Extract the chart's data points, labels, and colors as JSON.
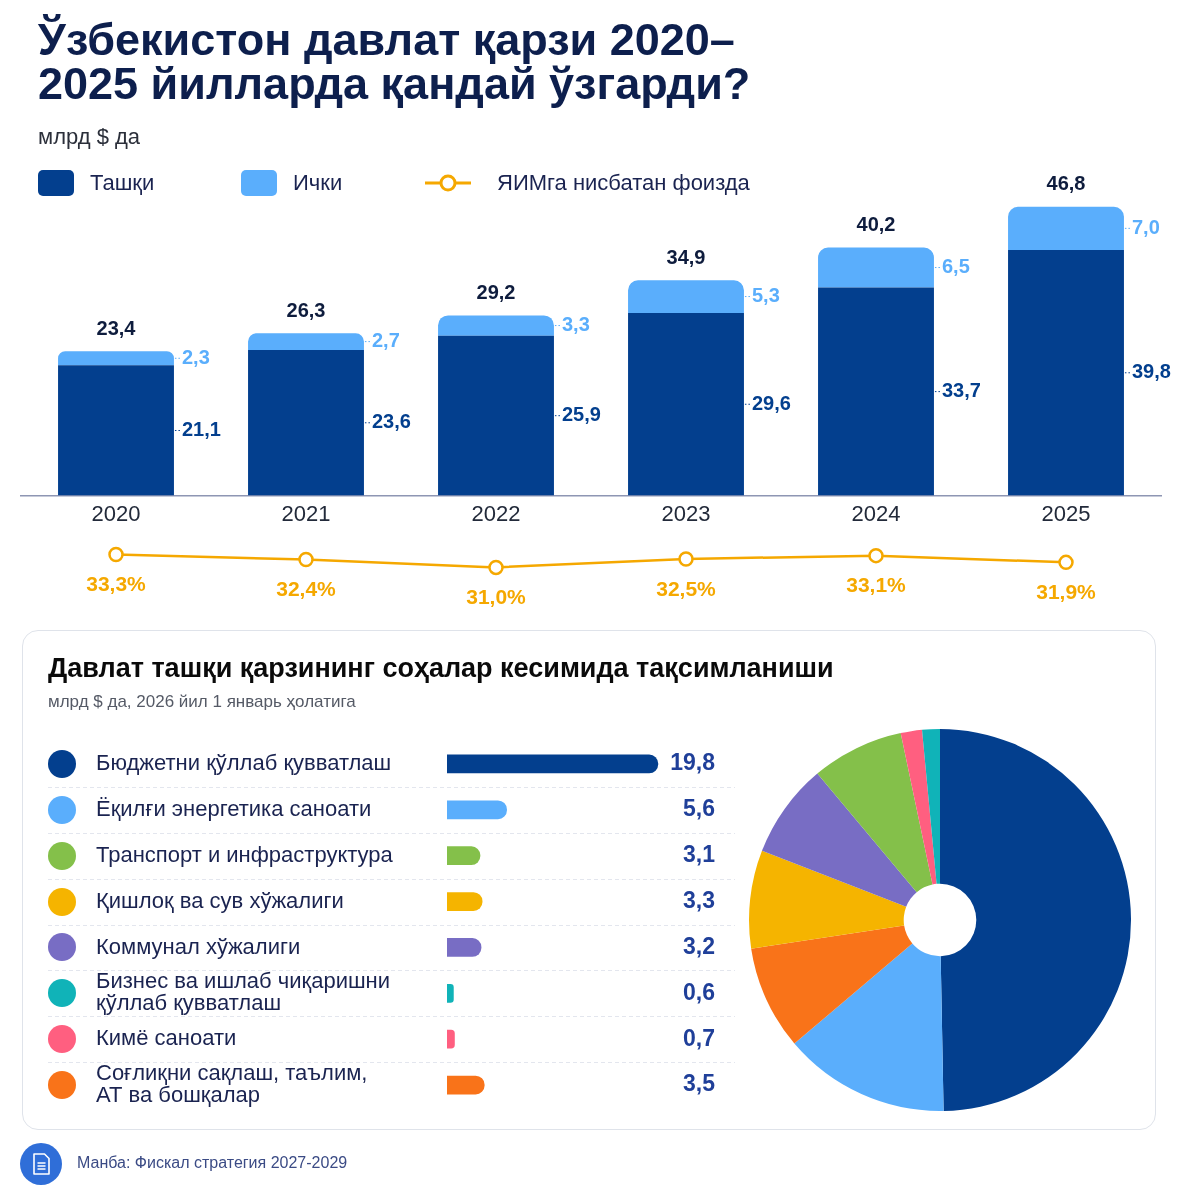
{
  "chart_data": [
    {
      "type": "bar",
      "title": "Ўзбекистон давлат қарзи 2020–2025 йилларда қандай ўзгарди?",
      "subtitle": "млрд $ да",
      "categories": [
        "2020",
        "2021",
        "2022",
        "2023",
        "2024",
        "2025"
      ],
      "stacked": true,
      "series": [
        {
          "name": "Ташқи",
          "color": "#033f8e",
          "values": [
            21.1,
            23.6,
            25.9,
            29.6,
            33.7,
            39.8
          ],
          "value_labels": [
            "21,1",
            "23,6",
            "25,9",
            "29,6",
            "33,7",
            "39,8"
          ]
        },
        {
          "name": "Ички",
          "color": "#5aaefc",
          "values": [
            2.3,
            2.7,
            3.3,
            5.3,
            6.5,
            7.0
          ],
          "value_labels": [
            "2,3",
            "2,7",
            "3,3",
            "5,3",
            "6,5",
            "7,0"
          ]
        }
      ],
      "totals": [
        "23,4",
        "26,3",
        "29,2",
        "34,9",
        "40,2",
        "46,8"
      ],
      "legend": "top left",
      "tick_labels": "x"
    },
    {
      "type": "line",
      "categories": [
        "2020",
        "2021",
        "2022",
        "2023",
        "2024",
        "2025"
      ],
      "series": [
        {
          "name": "ЯИМга нисбатан фоизда",
          "color": "#f5a800",
          "values": [
            33.3,
            32.4,
            31.0,
            32.5,
            33.1,
            31.9
          ],
          "value_labels": [
            "33,3%",
            "32,4%",
            "31,0%",
            "32,5%",
            "33,1%",
            "31,9%"
          ]
        }
      ],
      "marker": "circle",
      "legend": "top left",
      "tick_labels": false
    },
    {
      "type": "bar",
      "orientation": "horizontal",
      "title": "Давлат ташқи қарзининг соҳалар кесимида тақсимланиши",
      "subtitle": "млрд $ да, 2026 йил 1 январь ҳолатига",
      "categories": [
        "Бюджетни қўллаб қувватлаш",
        "Ёқилғи энергетика саноати",
        "Транспорт и инфраструктура",
        "Қишлоқ ва сув хўжалиги",
        "Коммунал хўжалиги",
        "Бизнес ва ишлаб чиқаришни қўллаб қувватлаш",
        "Кимё саноати",
        "Соғлиқни сақлаш, таълим, АТ ва бошқалар"
      ],
      "values": [
        19.8,
        5.6,
        3.1,
        3.3,
        3.2,
        0.6,
        0.7,
        3.5
      ],
      "colors": [
        "#033f8e",
        "#5aaefc",
        "#84c04a",
        "#f5b400",
        "#786dc4",
        "#10b3b8",
        "#ff5f80",
        "#f97319"
      ],
      "value_labels": [
        "19,8",
        "5,6",
        "3,1",
        "3,3",
        "3,2",
        "0,6",
        "0,7",
        "3,5"
      ],
      "tick_labels": "y",
      "grid": "y",
      "annotations": [
        "Манба: Фискал стратегия 2027-2029"
      ]
    },
    {
      "type": "donut",
      "categories": [
        null,
        null,
        null,
        null,
        null,
        null,
        null,
        null
      ],
      "values": [
        49.7,
        14.1,
        8.8,
        8.3,
        8.0,
        7.8,
        1.8,
        1.5
      ],
      "colors": [
        "#033f8e",
        "#5aaefc",
        "#f97319",
        "#f5b400",
        "#786dc4",
        "#84c04a",
        "#ff5f80",
        "#10b3b8"
      ]
    }
  ]
}
